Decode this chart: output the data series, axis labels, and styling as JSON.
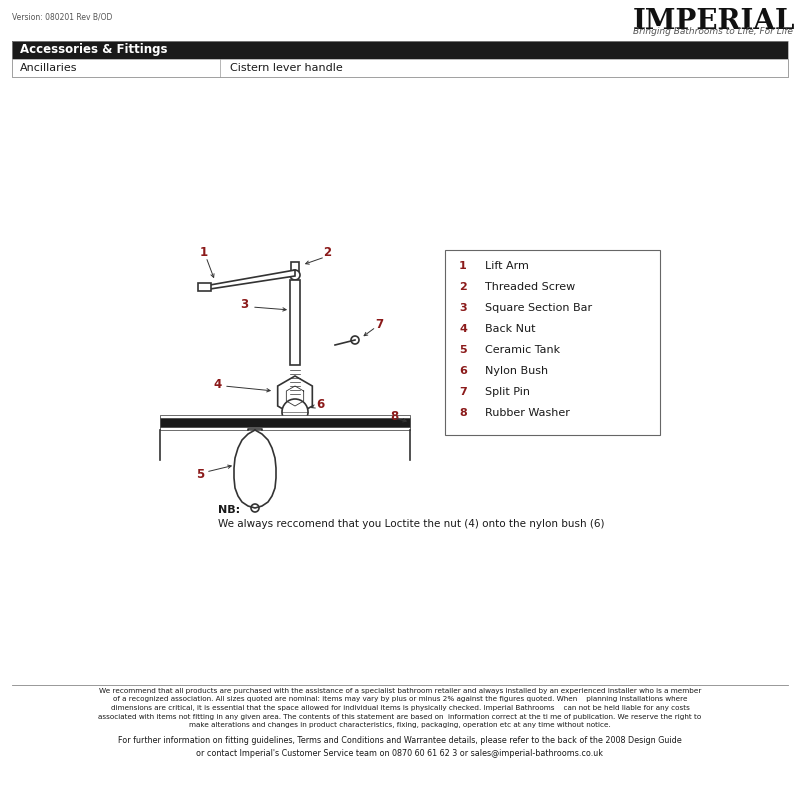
{
  "version_text": "Version: 080201 Rev B/OD",
  "brand_name": "IMPERIAL",
  "brand_tagline": "Bringing Bathrooms to Life, For Life",
  "header_bg": "#1a1a1a",
  "header_title": "Accessories & Fittings",
  "header_col1": "Ancillaries",
  "header_col2": "Cistern lever handle",
  "parts": [
    {
      "num": "1",
      "name": "Lift Arm"
    },
    {
      "num": "2",
      "name": "Threaded Screw"
    },
    {
      "num": "3",
      "name": "Square Section Bar"
    },
    {
      "num": "4",
      "name": "Back Nut"
    },
    {
      "num": "5",
      "name": "Ceramic Tank"
    },
    {
      "num": "6",
      "name": "Nylon Bush"
    },
    {
      "num": "7",
      "name": "Split Pin"
    },
    {
      "num": "8",
      "name": "Rubber Washer"
    }
  ],
  "nb_title": "NB:",
  "nb_text": "We always reccomend that you Loctite the nut (4) onto the nylon bush (6)",
  "footer_text1": "We recommend that all products are purchased with the assistance of a specialist bathroom retailer and always installed by an experienced installer who is a member\nof a recognized association. All sizes quoted are nominal: items may vary by plus or minus 2% against the figures quoted. When    planning installations where\ndimensions are critical, it is essential that the space allowed for individual items is physically checked. Imperial Bathrooms    can not be held liable for any costs\nassociated with items not fitting in any given area. The contents of this statement are based on  information correct at the ti me of publication. We reserve the right to\nmake alterations and changes in product characteristics, fixing, packaging, operation etc at any time without notice.",
  "footer_text2": "For further information on fitting guidelines, Terms and Conditions and Warrantee details, please refer to the back of the 2008 Design Guide\nor contact Imperial's Customer Service team on 0870 60 61 62 3 or sales@imperial-bathrooms.co.uk",
  "bg_color": "#ffffff",
  "text_color": "#1a1a1a",
  "label_color": "#8B1A1A",
  "line_color": "#333333"
}
